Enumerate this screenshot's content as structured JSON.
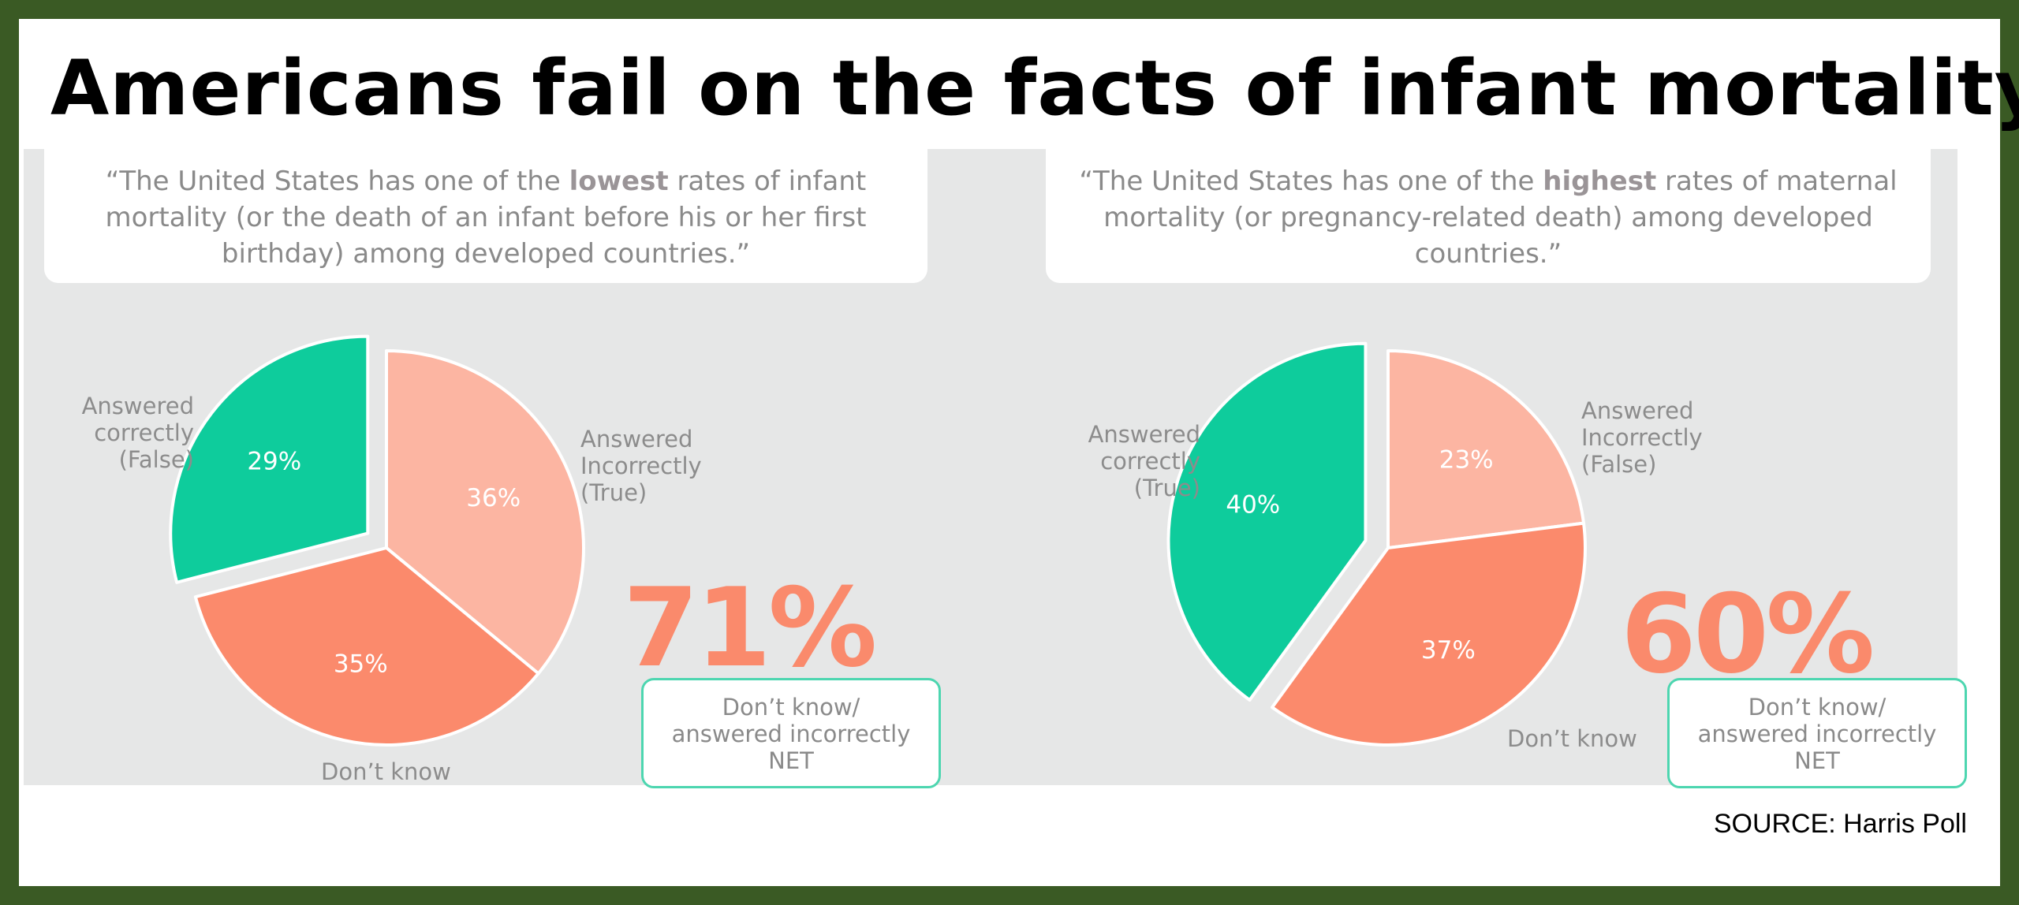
{
  "title": "Americans fail on the facts of infant mortality",
  "source": "SOURCE: Harris Poll",
  "colors": {
    "correct": "#0ecc9c",
    "incorrect": "#fcb5a2",
    "dont_know": "#fb8a6c",
    "net_text": "#fa8a6c",
    "border": "#3a5a24"
  },
  "chart_data": [
    {
      "type": "pie",
      "title_pre": "“The United States has one of the ",
      "title_bold": "lowest",
      "title_post": " rates of infant mortality (or the death of an infant before his or her first birthday) among developed countries.”",
      "slices": [
        {
          "label": "Answered\ncorrectly\n(False)",
          "value": 29,
          "display": "29%",
          "color": "#0ecc9c",
          "exploded": true
        },
        {
          "label": "Answered\nIncorrectly\n(True)",
          "value": 36,
          "display": "36%",
          "color": "#fcb5a2",
          "exploded": false
        },
        {
          "label": "Don’t know",
          "value": 35,
          "display": "35%",
          "color": "#fb8a6c",
          "exploded": false
        }
      ],
      "net_value": "71%",
      "net_label": "Don’t know/\nanswered incorrectly\nNET"
    },
    {
      "type": "pie",
      "title_pre": "“The United States has one of the ",
      "title_bold": "highest",
      "title_post": " rates of maternal mortality (or pregnancy-related death) among developed countries.”",
      "slices": [
        {
          "label": "Answered\ncorrectly\n(True)",
          "value": 40,
          "display": "40%",
          "color": "#0ecc9c",
          "exploded": true
        },
        {
          "label": "Answered\nIncorrectly\n(False)",
          "value": 23,
          "display": "23%",
          "color": "#fcb5a2",
          "exploded": false
        },
        {
          "label": "Don’t know",
          "value": 37,
          "display": "37%",
          "color": "#fb8a6c",
          "exploded": false
        }
      ],
      "net_value": "60%",
      "net_label": "Don’t know/\nanswered incorrectly\nNET"
    }
  ]
}
